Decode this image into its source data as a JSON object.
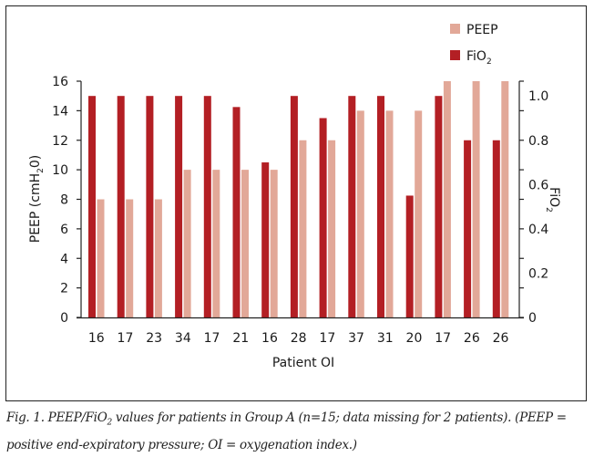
{
  "chart_data": {
    "type": "bar",
    "title": "",
    "xlabel": "Patient OI",
    "ylabel": "PEEP (cmH2O)",
    "ylabel_parts": {
      "main": "PEEP (cmH",
      "sub": "2",
      "end": "0)"
    },
    "y2label": "FiO2",
    "y2label_parts": {
      "main": "FiO",
      "sub": "2"
    },
    "categories": [
      "16",
      "17",
      "23",
      "34",
      "17",
      "21",
      "16",
      "28",
      "17",
      "37",
      "31",
      "20",
      "17",
      "26",
      "26"
    ],
    "series": [
      {
        "name": "FiO2",
        "axis": "right",
        "color": "#b31f24",
        "values": [
          1.0,
          1.0,
          1.0,
          1.0,
          1.0,
          0.95,
          0.7,
          1.0,
          0.9,
          1.0,
          1.0,
          0.55,
          1.0,
          0.8,
          0.8
        ]
      },
      {
        "name": "PEEP",
        "axis": "left",
        "color": "#e2a898",
        "values": [
          8,
          8,
          8,
          10,
          10,
          10,
          10,
          12,
          12,
          14,
          14,
          14,
          16,
          16,
          16
        ]
      }
    ],
    "ylim": [
      0,
      16
    ],
    "yticks": [
      0,
      2,
      4,
      6,
      8,
      10,
      12,
      14,
      16
    ],
    "y2lim": [
      0,
      1.0667
    ],
    "y2ticks": [
      0,
      0.2,
      0.4,
      0.6,
      0.8,
      1.0
    ],
    "y2tick_labels": [
      "0",
      "0.2",
      "0.4",
      "0.6",
      "0.8",
      "1.0"
    ],
    "grid": false,
    "legend": {
      "placement": "top-right",
      "entries": [
        {
          "label": "PEEP",
          "color": "#e2a898"
        },
        {
          "label": "FiO",
          "sub": "2",
          "color": "#b31f24"
        }
      ]
    }
  },
  "caption": {
    "prefix": "Fig. 1. PEEP/FiO",
    "sub": "2",
    "rest": " values for patients in Group A (n=15; data missing for 2 patients). (PEEP = positive end-expiratory pressure; OI = oxygenation index.)"
  }
}
